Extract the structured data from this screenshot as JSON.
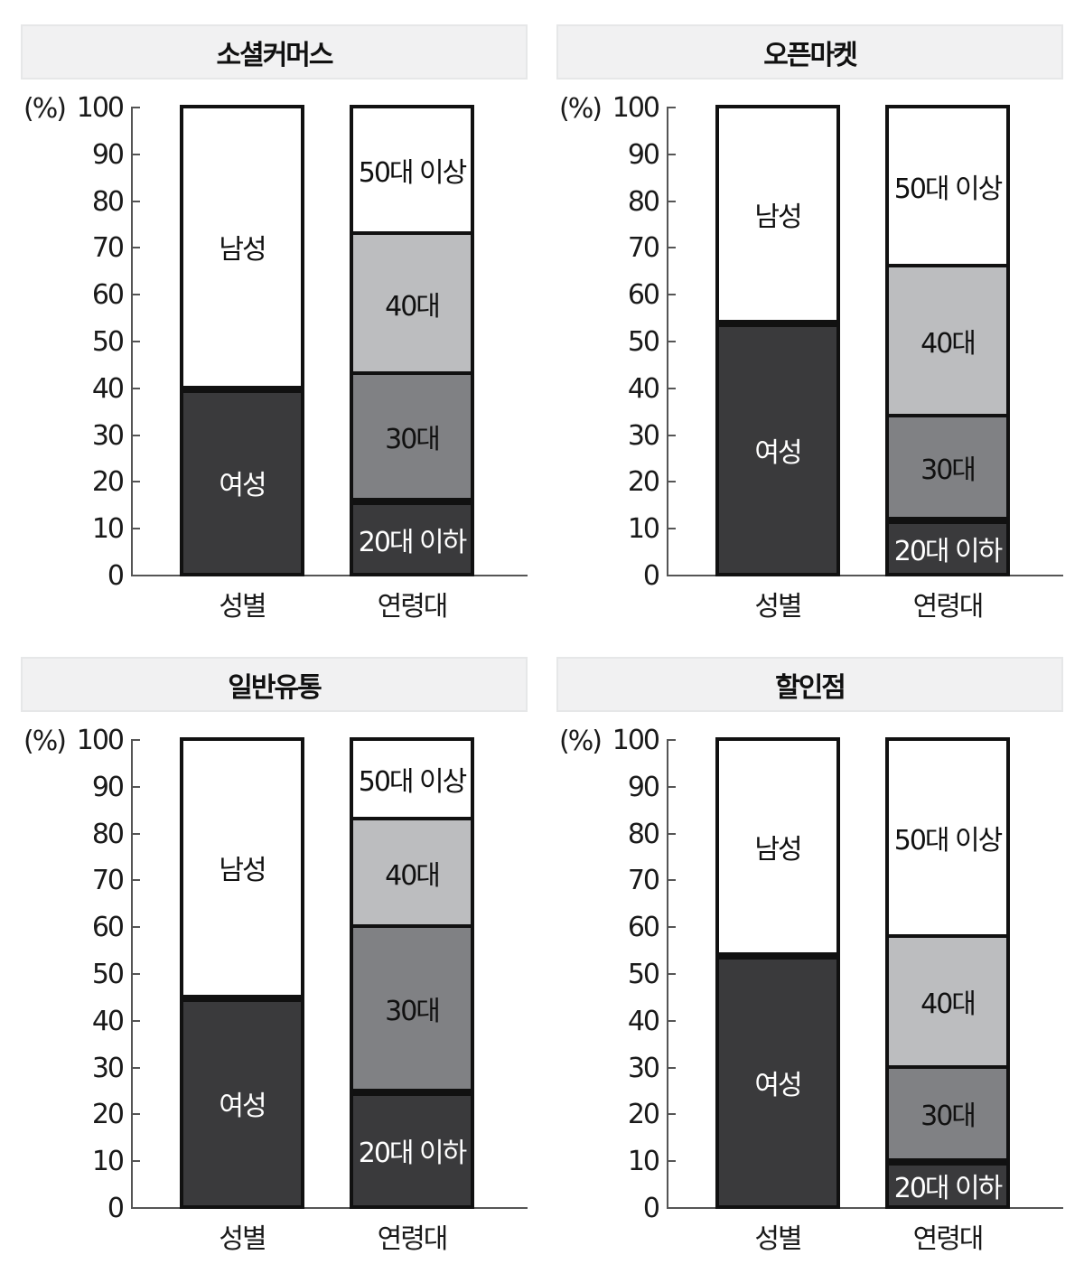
{
  "unit_label": "(%)",
  "y_ticks": [
    "100",
    "90",
    "80",
    "70",
    "60",
    "50",
    "40",
    "30",
    "20",
    "10",
    "0"
  ],
  "categories": [
    "성별",
    "연령대"
  ],
  "colors": {
    "female": "#3a3a3c",
    "male": "#ffffff",
    "age_20_under": "#3a3a3c",
    "age_30": "#808184",
    "age_40": "#bcbdbf",
    "age_50_over": "#ffffff",
    "title_bg": "#f1f1f2"
  },
  "panels": [
    {
      "title": "소셜커머스",
      "gender": [
        {
          "label": "여성",
          "value": 40
        },
        {
          "label": "남성",
          "value": 60
        }
      ],
      "age": [
        {
          "label": "20대 이하",
          "value": 16
        },
        {
          "label": "30대",
          "value": 27
        },
        {
          "label": "40대",
          "value": 30
        },
        {
          "label": "50대 이상",
          "value": 27
        }
      ]
    },
    {
      "title": "오픈마켓",
      "gender": [
        {
          "label": "여성",
          "value": 54
        },
        {
          "label": "남성",
          "value": 46
        }
      ],
      "age": [
        {
          "label": "20대 이하",
          "value": 12
        },
        {
          "label": "30대",
          "value": 22
        },
        {
          "label": "40대",
          "value": 32
        },
        {
          "label": "50대 이상",
          "value": 34
        }
      ]
    },
    {
      "title": "일반유통",
      "gender": [
        {
          "label": "여성",
          "value": 45
        },
        {
          "label": "남성",
          "value": 55
        }
      ],
      "age": [
        {
          "label": "20대 이하",
          "value": 25
        },
        {
          "label": "30대",
          "value": 35
        },
        {
          "label": "40대",
          "value": 23
        },
        {
          "label": "50대 이상",
          "value": 17
        }
      ]
    },
    {
      "title": "할인점",
      "gender": [
        {
          "label": "여성",
          "value": 54
        },
        {
          "label": "남성",
          "value": 46
        }
      ],
      "age": [
        {
          "label": "20대 이하",
          "value": 10
        },
        {
          "label": "30대",
          "value": 20
        },
        {
          "label": "40대",
          "value": 28
        },
        {
          "label": "50대 이상",
          "value": 42
        }
      ]
    }
  ],
  "chart_data": [
    {
      "type": "bar",
      "stacked": true,
      "title": "소셜커머스",
      "categories": [
        "성별",
        "연령대"
      ],
      "ylabel": "(%)",
      "ylim": [
        0,
        100
      ],
      "yticks": [
        0,
        10,
        20,
        30,
        40,
        50,
        60,
        70,
        80,
        90,
        100
      ],
      "series": [
        {
          "name": "여성",
          "category": "성별",
          "value": 40
        },
        {
          "name": "남성",
          "category": "성별",
          "value": 60
        },
        {
          "name": "20대 이하",
          "category": "연령대",
          "value": 16
        },
        {
          "name": "30대",
          "category": "연령대",
          "value": 27
        },
        {
          "name": "40대",
          "category": "연령대",
          "value": 30
        },
        {
          "name": "50대 이상",
          "category": "연령대",
          "value": 27
        }
      ],
      "grid": false,
      "legend": "inline labels"
    },
    {
      "type": "bar",
      "stacked": true,
      "title": "오픈마켓",
      "categories": [
        "성별",
        "연령대"
      ],
      "ylabel": "(%)",
      "ylim": [
        0,
        100
      ],
      "yticks": [
        0,
        10,
        20,
        30,
        40,
        50,
        60,
        70,
        80,
        90,
        100
      ],
      "series": [
        {
          "name": "여성",
          "category": "성별",
          "value": 54
        },
        {
          "name": "남성",
          "category": "성별",
          "value": 46
        },
        {
          "name": "20대 이하",
          "category": "연령대",
          "value": 12
        },
        {
          "name": "30대",
          "category": "연령대",
          "value": 22
        },
        {
          "name": "40대",
          "category": "연령대",
          "value": 32
        },
        {
          "name": "50대 이상",
          "category": "연령대",
          "value": 34
        }
      ],
      "grid": false,
      "legend": "inline labels"
    },
    {
      "type": "bar",
      "stacked": true,
      "title": "일반유통",
      "categories": [
        "성별",
        "연령대"
      ],
      "ylabel": "(%)",
      "ylim": [
        0,
        100
      ],
      "yticks": [
        0,
        10,
        20,
        30,
        40,
        50,
        60,
        70,
        80,
        90,
        100
      ],
      "series": [
        {
          "name": "여성",
          "category": "성별",
          "value": 45
        },
        {
          "name": "남성",
          "category": "성별",
          "value": 55
        },
        {
          "name": "20대 이하",
          "category": "연령대",
          "value": 25
        },
        {
          "name": "30대",
          "category": "연령대",
          "value": 35
        },
        {
          "name": "40대",
          "category": "연령대",
          "value": 23
        },
        {
          "name": "50대 이상",
          "category": "연령대",
          "value": 17
        }
      ],
      "grid": false,
      "legend": "inline labels"
    },
    {
      "type": "bar",
      "stacked": true,
      "title": "할인점",
      "categories": [
        "성별",
        "연령대"
      ],
      "ylabel": "(%)",
      "ylim": [
        0,
        100
      ],
      "yticks": [
        0,
        10,
        20,
        30,
        40,
        50,
        60,
        70,
        80,
        90,
        100
      ],
      "series": [
        {
          "name": "여성",
          "category": "성별",
          "value": 54
        },
        {
          "name": "남성",
          "category": "성별",
          "value": 46
        },
        {
          "name": "20대 이하",
          "category": "연령대",
          "value": 10
        },
        {
          "name": "30대",
          "category": "연령대",
          "value": 20
        },
        {
          "name": "40대",
          "category": "연령대",
          "value": 28
        },
        {
          "name": "50대 이상",
          "category": "연령대",
          "value": 42
        }
      ],
      "grid": false,
      "legend": "inline labels"
    }
  ]
}
